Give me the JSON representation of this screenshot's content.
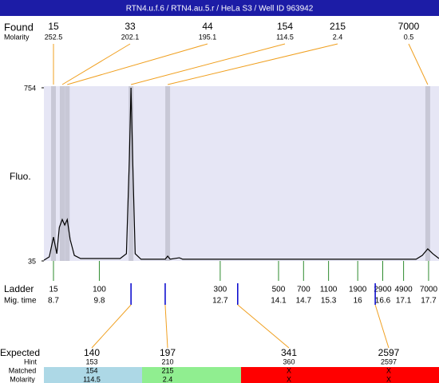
{
  "header": {
    "title": "RTN4.u.f.6 / RTN4.au.5.r / HeLa S3 / Well ID 963942"
  },
  "found": {
    "label": "Found",
    "sublabel": "Molarity",
    "sizes": [
      15,
      33,
      44,
      154,
      215,
      7000
    ],
    "molarity": [
      252.5,
      202.1,
      195.1,
      114.5,
      2.4,
      0.5
    ],
    "times": [
      8.7,
      8.91,
      9.03,
      10.56,
      11.44,
      17.68
    ]
  },
  "chart_data": {
    "type": "line",
    "ylabel": "Fluo.",
    "xlim": [
      8.47,
      17.95
    ],
    "ylim": [
      35,
      754
    ],
    "yticks": [
      754,
      35
    ],
    "x": [
      8.47,
      8.6,
      8.7,
      8.78,
      8.84,
      8.91,
      8.97,
      9.03,
      9.1,
      9.2,
      9.35,
      10.3,
      10.45,
      10.52,
      10.56,
      10.6,
      10.66,
      10.8,
      11.38,
      11.44,
      11.5,
      11.72,
      11.8,
      17.4,
      17.55,
      17.68,
      17.8,
      17.95
    ],
    "values": [
      38,
      52,
      134,
      65,
      174,
      207,
      184,
      207,
      124,
      58,
      45,
      45,
      65,
      456,
      754,
      456,
      65,
      42,
      42,
      55,
      42,
      48,
      42,
      42,
      58,
      85,
      65,
      45
    ],
    "color": "#000000",
    "area_color": "#e6e6f5",
    "band_color": "#c8c8d6"
  },
  "ladder": {
    "label": "Ladder",
    "sublabel": "Mig. time",
    "sizes": [
      15,
      100,
      300,
      500,
      700,
      1100,
      1900,
      2900,
      4900,
      7000
    ],
    "times": [
      8.7,
      9.8,
      12.7,
      14.1,
      14.7,
      15.3,
      16,
      16.6,
      17.1,
      17.7
    ],
    "color": "#2e8b2e"
  },
  "expected": {
    "label": "Expected",
    "hint_label": "Hint",
    "matched_label": "Matched",
    "molarity_label": "Molarity",
    "sizes": [
      140,
      197,
      341,
      2597
    ],
    "hint": [
      153,
      210,
      360,
      2597
    ],
    "matched": [
      154,
      215,
      "X",
      "X"
    ],
    "molarity": [
      114.5,
      2.4,
      "X",
      "X"
    ],
    "times": [
      10.56,
      11.38,
      13.12,
      16.42
    ],
    "colors": [
      "#add8e6",
      "#90ee90",
      "#ff0000",
      "#ff0000"
    ],
    "marker_color": "#0000cc"
  }
}
